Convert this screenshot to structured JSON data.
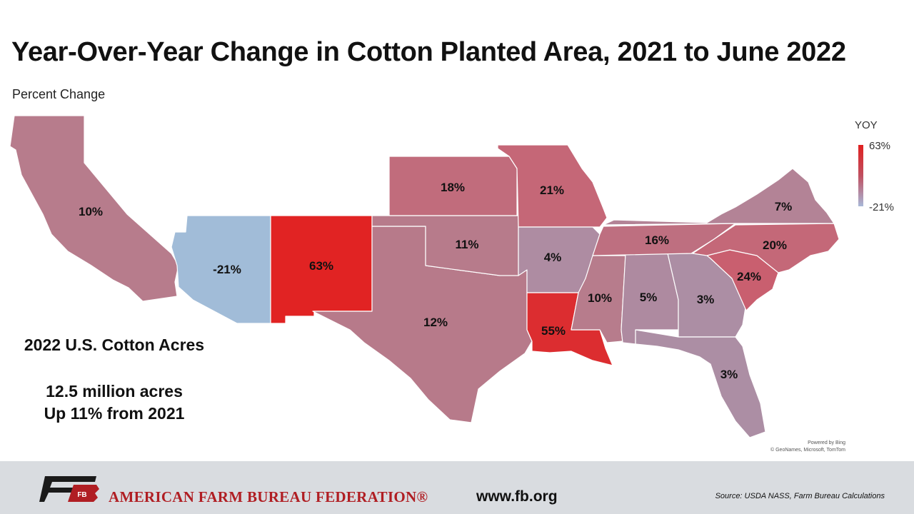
{
  "title": "Year-Over-Year Change in Cotton Planted Area, 2021 to June 2022",
  "subtitle": "Percent Change",
  "legend": {
    "title": "YOY",
    "max_label": "63%",
    "min_label": "-21%",
    "max_color": "#e02020",
    "min_color": "#a8b8d8"
  },
  "map_data": {
    "states": [
      {
        "name": "California",
        "value": 10,
        "label": "10%",
        "color": "#b77c8c"
      },
      {
        "name": "Arizona",
        "value": -21,
        "label": "-21%",
        "color": "#a1bcd8"
      },
      {
        "name": "New Mexico",
        "value": 63,
        "label": "63%",
        "color": "#e12323"
      },
      {
        "name": "Texas",
        "value": 12,
        "label": "12%",
        "color": "#b77a8a"
      },
      {
        "name": "Oklahoma",
        "value": 11,
        "label": "11%",
        "color": "#b77b8b"
      },
      {
        "name": "Kansas",
        "value": 18,
        "label": "18%",
        "color": "#c16c7c"
      },
      {
        "name": "Missouri",
        "value": 21,
        "label": "21%",
        "color": "#c56777"
      },
      {
        "name": "Arkansas",
        "value": 4,
        "label": "4%",
        "color": "#ae8ca2"
      },
      {
        "name": "Louisiana",
        "value": 55,
        "label": "55%",
        "color": "#dc2d30"
      },
      {
        "name": "Mississippi",
        "value": 10,
        "label": "10%",
        "color": "#b77c8c"
      },
      {
        "name": "Alabama",
        "value": 5,
        "label": "5%",
        "color": "#ae8aa0"
      },
      {
        "name": "Georgia",
        "value": 3,
        "label": "3%",
        "color": "#ac8ea4"
      },
      {
        "name": "Florida",
        "value": 3,
        "label": "3%",
        "color": "#ac8ea4"
      },
      {
        "name": "Tennessee",
        "value": 16,
        "label": "16%",
        "color": "#be6f80"
      },
      {
        "name": "South Carolina",
        "value": 24,
        "label": "24%",
        "color": "#c95f6f"
      },
      {
        "name": "North Carolina",
        "value": 20,
        "label": "20%",
        "color": "#c46878"
      },
      {
        "name": "Virginia",
        "value": 7,
        "label": "7%",
        "color": "#b38396"
      }
    ]
  },
  "summary": {
    "heading": "2022 U.S. Cotton Acres",
    "line1": "12.5 million acres",
    "line2": "Up 11% from 2021"
  },
  "attribution": {
    "line1": "Powered by Bing",
    "line2": "© GeoNames, Microsoft, TomTom"
  },
  "footer": {
    "org_name": "AMERICAN FARM BUREAU FEDERATION®",
    "website": "www.fb.org",
    "source": "Source: USDA NASS, Farm Bureau Calculations",
    "logo_text": "FB",
    "brand_color": "#b01e23"
  }
}
